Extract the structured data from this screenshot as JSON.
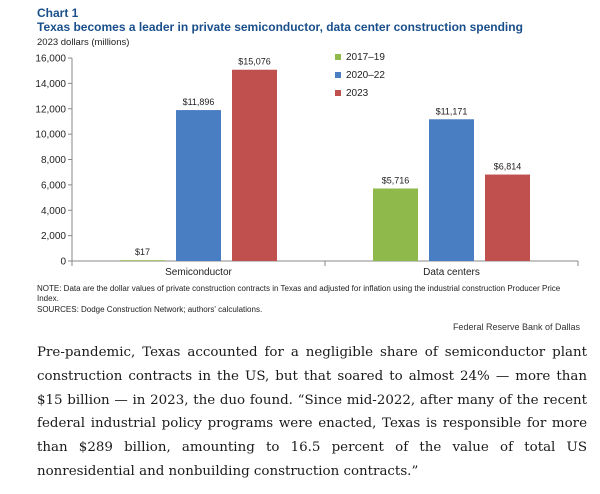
{
  "chart_data": {
    "type": "bar",
    "label": "Chart 1",
    "title": "Texas becomes a leader in private semiconductor, data center construction spending",
    "ylabel": "2023 dollars (millions)",
    "xlabel": "",
    "ylim": [
      0,
      16000
    ],
    "yticks": [
      0,
      2000,
      4000,
      6000,
      8000,
      10000,
      12000,
      14000,
      16000
    ],
    "ytick_labels": [
      "0",
      "2,000",
      "4,000",
      "6,000",
      "8,000",
      "10,000",
      "12,000",
      "14,000",
      "16,000"
    ],
    "categories": [
      "Semiconductor",
      "Data centers"
    ],
    "series": [
      {
        "name": "2017–19",
        "color": "#8fb94b",
        "values": [
          17,
          5716
        ],
        "labels": [
          "$17",
          "$5,716"
        ]
      },
      {
        "name": "2020–22",
        "color": "#4a7ec2",
        "values": [
          11896,
          11171
        ],
        "labels": [
          "$11,896",
          "$11,171"
        ]
      },
      {
        "name": "2023",
        "color": "#c0504d",
        "values": [
          15076,
          6814
        ],
        "labels": [
          "$15,076",
          "$6,814"
        ]
      }
    ],
    "legend_position": "top-right",
    "grid": false
  },
  "note": "NOTE: Data are the dollar values of private construction contracts in Texas and adjusted for inflation using the industrial construction Producer Price Index.",
  "sources": "SOURCES: Dodge Construction Network; authors' calculations.",
  "credit": "Federal Reserve Bank of Dallas",
  "body_text": "Pre-pandemic, Texas accounted for a negligible share of semiconductor plant construction contracts in the US, but that soared to almost 24% — more than $15 billion — in 2023, the duo found. “Since mid-2022, after many of the recent federal industrial policy programs were enacted, Texas is responsible for more than $289 billion, amounting to 16.5 percent of the value of total US nonresidential and nonbuilding construction contracts.”"
}
